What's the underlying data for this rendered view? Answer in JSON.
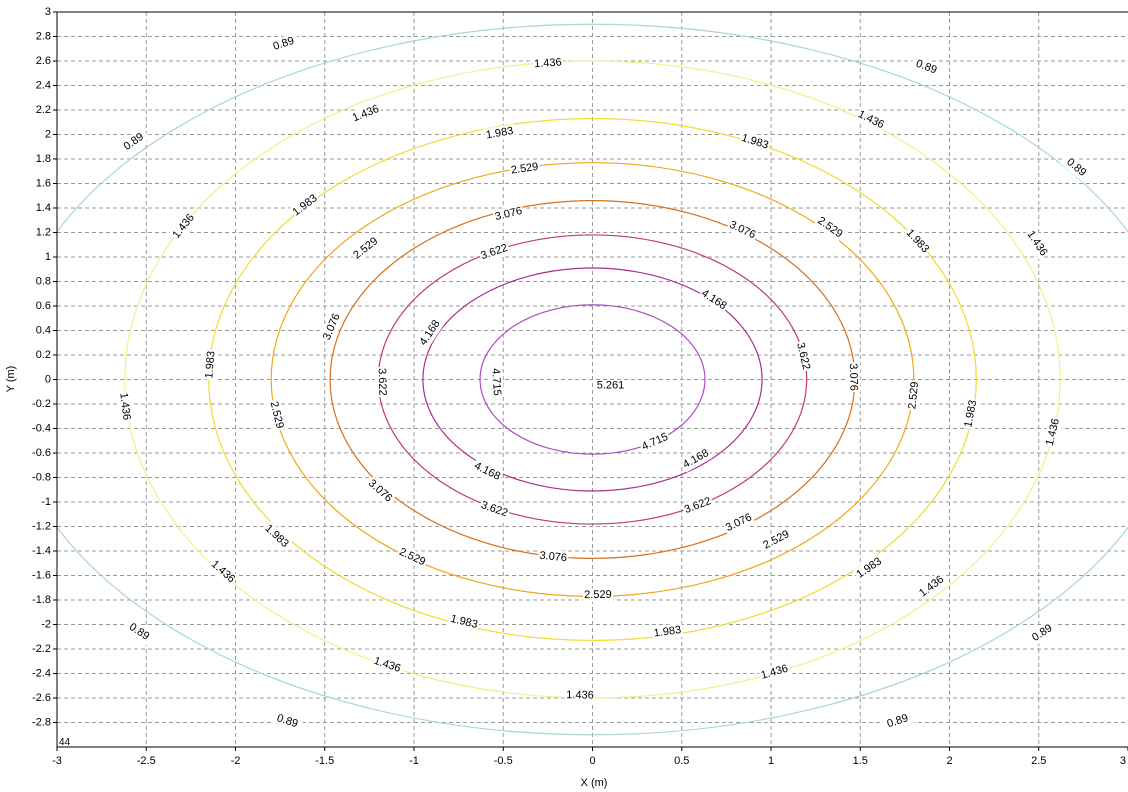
{
  "chart_data": {
    "type": "contour",
    "xlabel": "X (m)",
    "ylabel": "Y (m)",
    "xlim": [
      -3,
      3
    ],
    "ylim": [
      -3,
      3
    ],
    "grid": true,
    "x_ticks": [
      "-3",
      "-2.5",
      "-2",
      "-1.5",
      "-1",
      "-0.5",
      "0",
      "0.5",
      "1",
      "1.5",
      "2",
      "2.5",
      "3"
    ],
    "y_ticks": [
      "3",
      "2.8",
      "2.6",
      "2.4",
      "2.2",
      "2",
      "1.8",
      "1.6",
      "1.4",
      "1.2",
      "1",
      "0.8",
      "0.6",
      "0.4",
      "0.2",
      "0",
      "-0.2",
      "-0.4",
      "-0.6",
      "-0.8",
      "-1",
      "-1.2",
      "-1.4",
      "-1.6",
      "-1.8",
      "-2",
      "-2.2",
      "-2.4",
      "-2.6",
      "-2.8"
    ],
    "peak": {
      "x": 0,
      "y": 0,
      "label": "5.261"
    },
    "corner_label": "44",
    "levels": [
      {
        "label": "0.89",
        "color": "#a8d8d0",
        "rx": 3.3,
        "ry": 2.9
      },
      {
        "label": "1.436",
        "color": "#f3f08a",
        "rx": 2.62,
        "ry": 2.6
      },
      {
        "label": "1.983",
        "color": "#eedc2e",
        "rx": 2.15,
        "ry": 2.13
      },
      {
        "label": "2.529",
        "color": "#f0a818",
        "rx": 1.8,
        "ry": 1.77
      },
      {
        "label": "3.076",
        "color": "#d4701c",
        "rx": 1.47,
        "ry": 1.46
      },
      {
        "label": "3.622",
        "color": "#c04058",
        "rx": 1.2,
        "ry": 1.18
      },
      {
        "label": "4.168",
        "color": "#a8308c",
        "rx": 0.95,
        "ry": 0.91
      },
      {
        "label": "4.715",
        "color": "#b04cc4",
        "rx": 0.63,
        "ry": 0.61
      }
    ],
    "labels": [
      {
        "level": 0,
        "x": -1.73,
        "y": 2.74
      },
      {
        "level": 0,
        "x": -2.57,
        "y": 1.94
      },
      {
        "level": 0,
        "x": 1.87,
        "y": 2.55
      },
      {
        "level": 0,
        "x": 2.71,
        "y": 1.73
      },
      {
        "level": 0,
        "x": -2.54,
        "y": -2.06
      },
      {
        "level": 0,
        "x": -1.71,
        "y": -2.79
      },
      {
        "level": 0,
        "x": 1.71,
        "y": -2.79
      },
      {
        "level": 0,
        "x": 2.52,
        "y": -2.07
      },
      {
        "level": 1,
        "x": -0.25,
        "y": 2.58
      },
      {
        "level": 1,
        "x": -1.27,
        "y": 2.17
      },
      {
        "level": 1,
        "x": 1.56,
        "y": 2.12
      },
      {
        "level": 1,
        "x": -2.29,
        "y": 1.25
      },
      {
        "level": 1,
        "x": 2.49,
        "y": 1.11
      },
      {
        "level": 1,
        "x": -2.62,
        "y": -0.22
      },
      {
        "level": 1,
        "x": 2.58,
        "y": -0.43
      },
      {
        "level": 1,
        "x": -2.07,
        "y": -1.57
      },
      {
        "level": 1,
        "x": 1.9,
        "y": -1.69
      },
      {
        "level": 1,
        "x": -1.15,
        "y": -2.33
      },
      {
        "level": 1,
        "x": 1.02,
        "y": -2.39
      },
      {
        "level": 1,
        "x": -0.07,
        "y": -2.58
      },
      {
        "level": 2,
        "x": -0.52,
        "y": 2.01
      },
      {
        "level": 2,
        "x": 0.91,
        "y": 1.94
      },
      {
        "level": 2,
        "x": -1.61,
        "y": 1.42
      },
      {
        "level": 2,
        "x": 1.82,
        "y": 1.13
      },
      {
        "level": 2,
        "x": -2.14,
        "y": 0.12
      },
      {
        "level": 2,
        "x": 2.12,
        "y": -0.28
      },
      {
        "level": 2,
        "x": -1.77,
        "y": -1.28
      },
      {
        "level": 2,
        "x": 1.55,
        "y": -1.54
      },
      {
        "level": 2,
        "x": -0.72,
        "y": -1.98
      },
      {
        "level": 2,
        "x": 0.42,
        "y": -2.06
      },
      {
        "level": 3,
        "x": -0.38,
        "y": 1.72
      },
      {
        "level": 3,
        "x": 1.33,
        "y": 1.24
      },
      {
        "level": 3,
        "x": -1.27,
        "y": 1.07
      },
      {
        "level": 3,
        "x": -1.77,
        "y": -0.29
      },
      {
        "level": 3,
        "x": 1.8,
        "y": -0.13
      },
      {
        "level": 3,
        "x": -1.01,
        "y": -1.45
      },
      {
        "level": 3,
        "x": 1.03,
        "y": -1.31
      },
      {
        "level": 3,
        "x": 0.03,
        "y": -1.76
      },
      {
        "level": 4,
        "x": -0.47,
        "y": 1.35
      },
      {
        "level": 4,
        "x": 0.84,
        "y": 1.22
      },
      {
        "level": 4,
        "x": -1.46,
        "y": 0.43
      },
      {
        "level": 4,
        "x": 1.46,
        "y": 0.02
      },
      {
        "level": 4,
        "x": -1.19,
        "y": -0.91
      },
      {
        "level": 4,
        "x": 0.82,
        "y": -1.17
      },
      {
        "level": 4,
        "x": -0.22,
        "y": -1.45
      },
      {
        "level": 5,
        "x": -0.55,
        "y": 1.04
      },
      {
        "level": 5,
        "x": -1.18,
        "y": -0.02
      },
      {
        "level": 5,
        "x": 1.18,
        "y": 0.19
      },
      {
        "level": 5,
        "x": -0.55,
        "y": -1.06
      },
      {
        "level": 5,
        "x": 0.59,
        "y": -1.03
      },
      {
        "level": 6,
        "x": 0.68,
        "y": 0.65
      },
      {
        "level": 6,
        "x": -0.91,
        "y": 0.38
      },
      {
        "level": 6,
        "x": -0.59,
        "y": -0.75
      },
      {
        "level": 6,
        "x": 0.58,
        "y": -0.65
      },
      {
        "level": 7,
        "x": -0.54,
        "y": -0.02
      },
      {
        "level": 7,
        "x": 0.35,
        "y": -0.51
      }
    ]
  }
}
